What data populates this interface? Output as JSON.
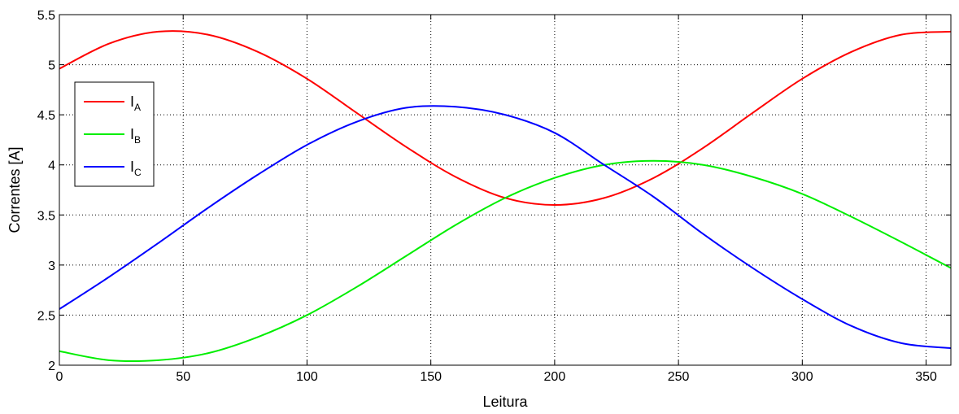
{
  "chart_data": {
    "type": "line",
    "xlabel": "Leitura",
    "ylabel": "Correntes [A]",
    "xlim": [
      0,
      360
    ],
    "ylim": [
      2,
      5.5
    ],
    "xticks": [
      0,
      50,
      100,
      150,
      200,
      250,
      300,
      350
    ],
    "xtick_labels": [
      "0",
      "50",
      "100",
      "150",
      "200",
      "250",
      "300",
      "350"
    ],
    "yticks": [
      2,
      2.5,
      3,
      3.5,
      4,
      4.5,
      5,
      5.5
    ],
    "ytick_labels": [
      "2",
      "2.5",
      "3",
      "3.5",
      "4",
      "4.5",
      "5",
      "5.5"
    ],
    "grid": true,
    "legend_position": "left",
    "x": [
      0,
      20,
      40,
      60,
      80,
      100,
      120,
      140,
      160,
      180,
      200,
      220,
      240,
      260,
      280,
      300,
      320,
      340,
      360
    ],
    "series": [
      {
        "name": "I",
        "subscript": "A",
        "color": "#ff0000",
        "values": [
          4.96,
          5.21,
          5.33,
          5.3,
          5.13,
          4.86,
          4.52,
          4.18,
          3.88,
          3.67,
          3.6,
          3.67,
          3.87,
          4.17,
          4.52,
          4.86,
          5.13,
          5.3,
          5.33
        ]
      },
      {
        "name": "I",
        "subscript": "B",
        "color": "#00ee00",
        "values": [
          2.14,
          2.05,
          2.05,
          2.12,
          2.28,
          2.5,
          2.78,
          3.09,
          3.4,
          3.67,
          3.87,
          4.0,
          4.04,
          4.0,
          3.88,
          3.71,
          3.48,
          3.23,
          2.97
        ]
      },
      {
        "name": "I",
        "subscript": "C",
        "color": "#0000ff",
        "values": [
          2.56,
          2.88,
          3.22,
          3.57,
          3.9,
          4.2,
          4.43,
          4.57,
          4.58,
          4.5,
          4.32,
          4.0,
          3.68,
          3.31,
          2.97,
          2.66,
          2.39,
          2.22,
          2.17
        ]
      }
    ]
  }
}
